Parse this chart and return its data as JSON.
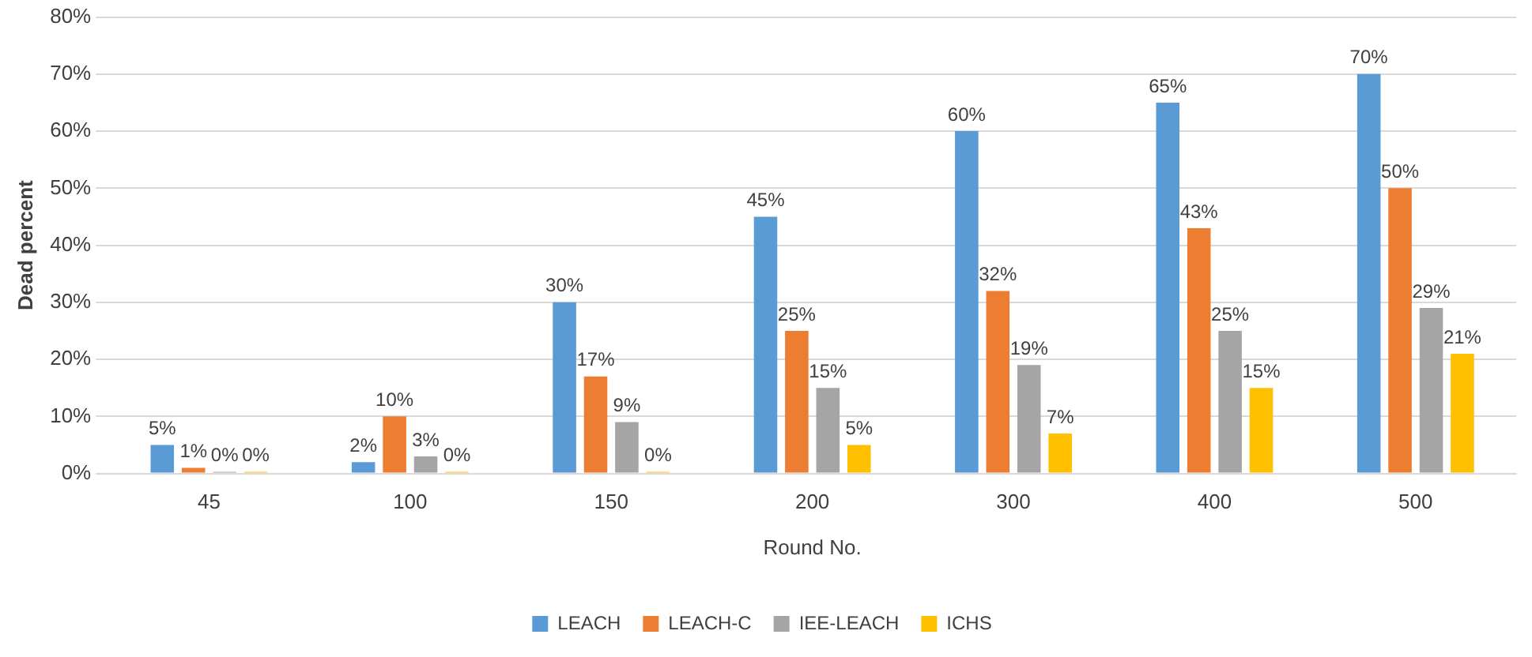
{
  "chart_data": {
    "type": "bar",
    "xlabel": "Round No.",
    "ylabel": "Dead percent",
    "categories": [
      "45",
      "100",
      "150",
      "200",
      "300",
      "400",
      "500"
    ],
    "series": [
      {
        "name": "LEACH",
        "color": "#5b9bd5",
        "values": [
          5,
          2,
          30,
          45,
          60,
          65,
          70
        ],
        "value_labels": [
          "5%",
          "2%",
          "30%",
          "45%",
          "60%",
          "65%",
          "70%"
        ]
      },
      {
        "name": "LEACH-C",
        "color": "#ed7d31",
        "values": [
          1,
          10,
          17,
          25,
          32,
          43,
          50
        ],
        "value_labels": [
          "1%",
          "10%",
          "17%",
          "25%",
          "32%",
          "43%",
          "50%"
        ]
      },
      {
        "name": "IEE-LEACH",
        "color": "#a5a5a5",
        "values": [
          0,
          3,
          9,
          15,
          19,
          25,
          29
        ],
        "value_labels": [
          "0%",
          "3%",
          "9%",
          "15%",
          "19%",
          "25%",
          "29%"
        ]
      },
      {
        "name": "ICHS",
        "color": "#ffc000",
        "values": [
          0,
          0,
          0,
          5,
          7,
          15,
          21
        ],
        "value_labels": [
          "0%",
          "0%",
          "0%",
          "5%",
          "7%",
          "15%",
          "21%"
        ]
      }
    ],
    "ylim": [
      0,
      80
    ],
    "yticks": [
      {
        "value": 0,
        "label": "0%"
      },
      {
        "value": 10,
        "label": "10%"
      },
      {
        "value": 20,
        "label": "20%"
      },
      {
        "value": 30,
        "label": "30%"
      },
      {
        "value": 40,
        "label": "40%"
      },
      {
        "value": 50,
        "label": "50%"
      },
      {
        "value": 60,
        "label": "60%"
      },
      {
        "value": 70,
        "label": "70%"
      },
      {
        "value": 80,
        "label": "80%"
      }
    ],
    "grid": "y",
    "legend": "bottom"
  }
}
